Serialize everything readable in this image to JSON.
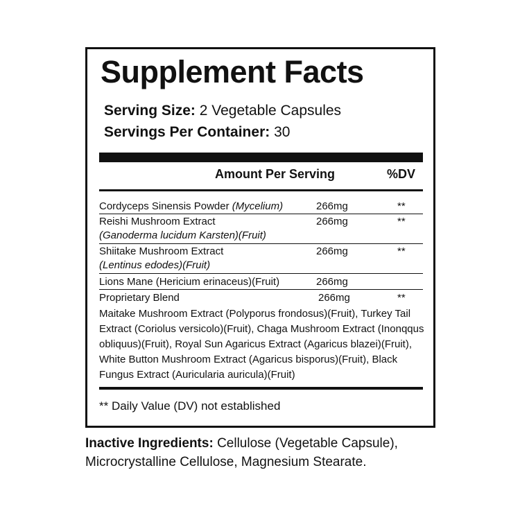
{
  "title": "Supplement Facts",
  "serving_size": {
    "label": "Serving Size:",
    "value": "2 Vegetable Capsules"
  },
  "servings_per_container": {
    "label": "Servings Per Container:",
    "value": "30"
  },
  "header": {
    "amount": "Amount Per Serving",
    "dv": "%DV"
  },
  "rows": [
    {
      "name": "Cordyceps Sinensis Powder",
      "detail": "(Mycelium)",
      "amount": "266mg",
      "dv": "**"
    },
    {
      "name": "Reishi Mushroom Extract",
      "detail": "(Ganoderma lucidum Karsten)(Fruit)",
      "amount": "266mg",
      "dv": "**"
    },
    {
      "name": "Shiitake Mushroom Extract",
      "detail": "(Lentinus edodes)(Fruit)",
      "amount": "266mg",
      "dv": "**"
    },
    {
      "name": "Lions Mane (Hericium erinaceus)(Fruit)",
      "amount": "266mg"
    },
    {
      "name": "Proprietary Blend",
      "amount": "266mg",
      "dv": "**"
    }
  ],
  "blend": "Maitake Mushroom Extract (Polyporus frondosus)(Fruit), Turkey Tail Extract (Coriolus versicolo)(Fruit), Chaga Mushroom Extract (Inonqqus obliquus)(Fruit), Royal Sun Agaricus Extract (Agaricus blazei)(Fruit), White Button Mushroom Extract (Agaricus bisporus)(Fruit), Black Fungus Extract (Auricularia auricula)(Fruit)",
  "footnote": "** Daily Value (DV) not established",
  "inactive": {
    "label": "Inactive Ingredients:",
    "value": "Cellulose (Vegetable Capsule), Microcrystalline Cellulose, Magnesium Stearate."
  }
}
